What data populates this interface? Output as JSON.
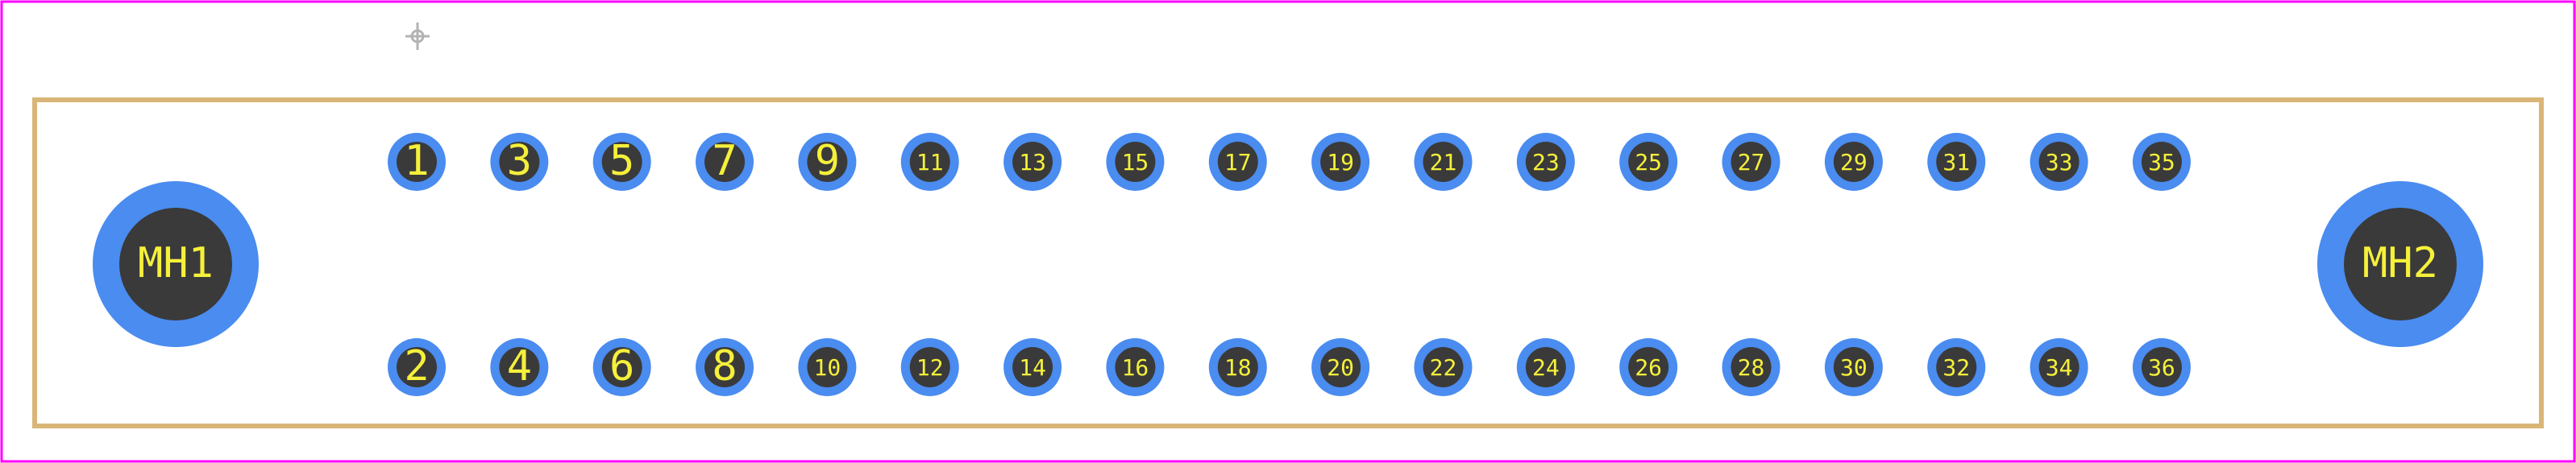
{
  "colors": {
    "background": "#ffffff",
    "frame": "#ff00ff",
    "outline": "#d9b577",
    "pad_ring": "#4a8cf0",
    "pad_hole": "#3a3a3a",
    "pad_text": "#f5f03a",
    "origin_marker": "#b3b3b3"
  },
  "origin_marker": {
    "icon": "origin-crosshair-icon"
  },
  "mounting_holes": [
    {
      "label": "MH1"
    },
    {
      "label": "MH2"
    }
  ],
  "pads_top": [
    "1",
    "3",
    "5",
    "7",
    "9",
    "11",
    "13",
    "15",
    "17",
    "19",
    "21",
    "23",
    "25",
    "27",
    "29",
    "31",
    "33",
    "35"
  ],
  "pads_bottom": [
    "2",
    "4",
    "6",
    "8",
    "10",
    "12",
    "14",
    "16",
    "18",
    "20",
    "22",
    "24",
    "26",
    "28",
    "30",
    "32",
    "34",
    "36"
  ]
}
